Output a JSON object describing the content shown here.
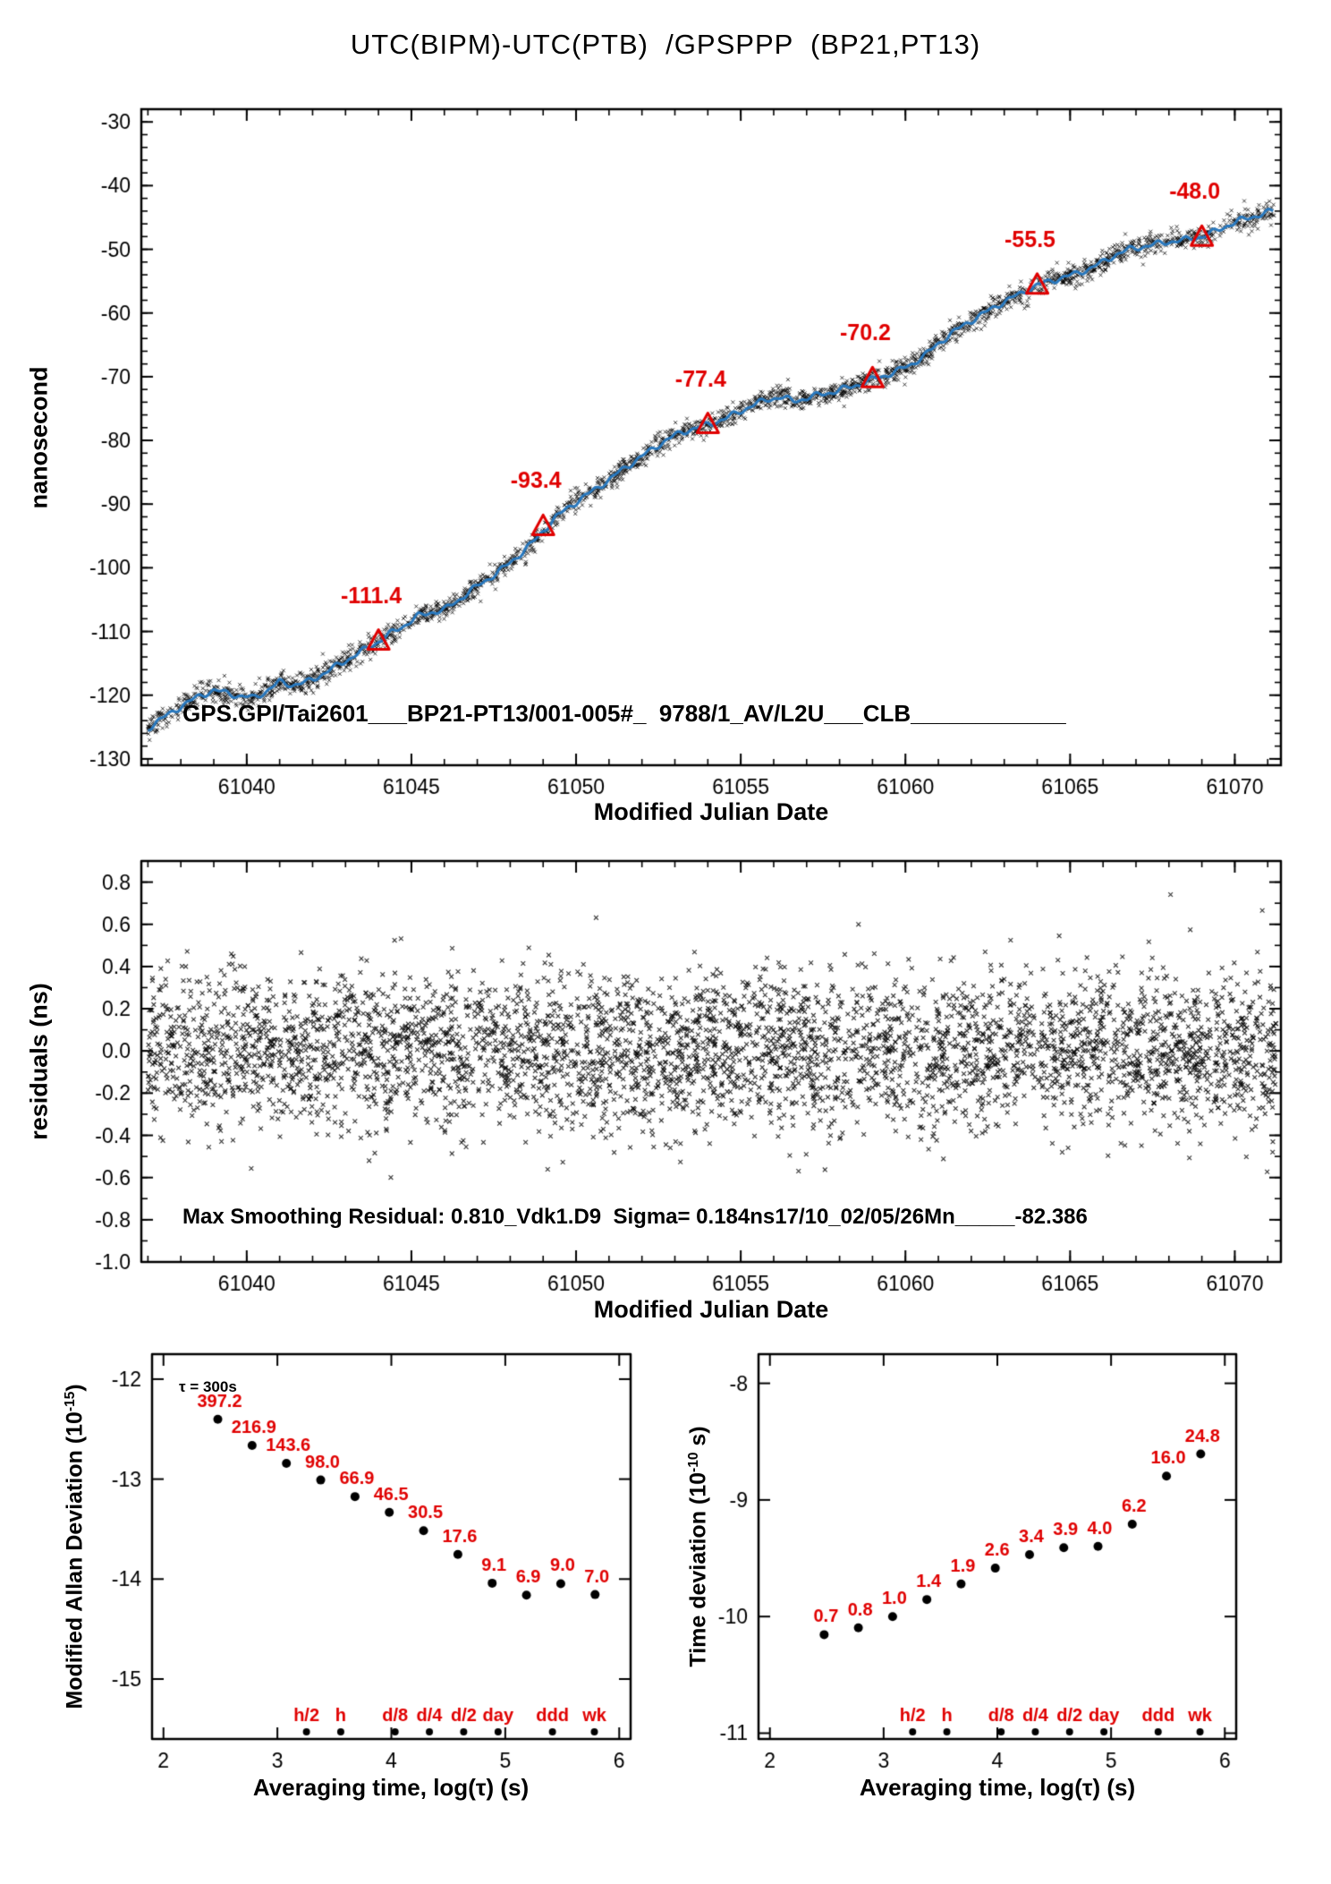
{
  "page": {
    "title": "UTC(BIPM)-UTC(PTB)  /GPSPPP  (BP21,PT13)"
  },
  "colors": {
    "red": "#e00000",
    "blue": "#2878be",
    "black": "#000000"
  },
  "chart_data": [
    {
      "id": "phase",
      "type": "line",
      "xlabel": "Modified Julian Date",
      "ylabel": "nanosecond",
      "xlim": [
        61036.8,
        61071.4
      ],
      "ylim": [
        -131,
        -28
      ],
      "xticks": [
        61040,
        61045,
        61050,
        61055,
        61060,
        61065,
        61070
      ],
      "xtick_labels": [
        "61040",
        "61045",
        "61050",
        "61055",
        "61060",
        "61065",
        "61070"
      ],
      "yticks": [
        -130,
        -120,
        -110,
        -100,
        -90,
        -80,
        -70,
        -60,
        -50,
        -40,
        -30
      ],
      "ytick_labels": [
        "-130",
        "-120",
        "-110",
        "-100",
        "-90",
        "-80",
        "-70",
        "-60",
        "-50",
        "-40",
        "-30"
      ],
      "line_color": "#2878be",
      "series": [
        {
          "name": "UTC(BIPM)-UTC(PTB) smoothed",
          "points": [
            [
              61037.0,
              -125.2
            ],
            [
              61037.4,
              -123.8
            ],
            [
              61037.8,
              -122.4
            ],
            [
              61038.2,
              -121.2
            ],
            [
              61038.6,
              -120.0
            ],
            [
              61039.0,
              -119.3
            ],
            [
              61039.4,
              -119.6
            ],
            [
              61039.8,
              -120.2
            ],
            [
              61040.2,
              -120.4
            ],
            [
              61040.6,
              -119.4
            ],
            [
              61041.0,
              -117.9
            ],
            [
              61041.4,
              -118.4
            ],
            [
              61041.8,
              -118.0
            ],
            [
              61042.2,
              -117.0
            ],
            [
              61042.6,
              -115.8
            ],
            [
              61043.0,
              -114.6
            ],
            [
              61043.4,
              -113.4
            ],
            [
              61043.8,
              -112.2
            ],
            [
              61044.0,
              -111.6
            ],
            [
              61044.4,
              -110.2
            ],
            [
              61044.8,
              -109.0
            ],
            [
              61045.2,
              -107.6
            ],
            [
              61045.6,
              -107.0
            ],
            [
              61046.0,
              -106.6
            ],
            [
              61046.4,
              -105.2
            ],
            [
              61046.8,
              -103.6
            ],
            [
              61047.2,
              -102.2
            ],
            [
              61047.6,
              -100.8
            ],
            [
              61048.0,
              -99.2
            ],
            [
              61048.4,
              -97.4
            ],
            [
              61048.8,
              -95.4
            ],
            [
              61049.0,
              -94.2
            ],
            [
              61049.4,
              -92.0
            ],
            [
              61049.8,
              -90.4
            ],
            [
              61050.2,
              -89.0
            ],
            [
              61050.6,
              -87.6
            ],
            [
              61051.0,
              -86.2
            ],
            [
              61051.4,
              -84.6
            ],
            [
              61051.8,
              -83.2
            ],
            [
              61052.2,
              -81.8
            ],
            [
              61052.6,
              -80.4
            ],
            [
              61053.0,
              -79.2
            ],
            [
              61053.4,
              -78.4
            ],
            [
              61053.8,
              -77.8
            ],
            [
              61054.2,
              -77.2
            ],
            [
              61054.6,
              -76.4
            ],
            [
              61055.0,
              -75.4
            ],
            [
              61055.4,
              -74.4
            ],
            [
              61055.8,
              -73.6
            ],
            [
              61056.2,
              -73.2
            ],
            [
              61056.6,
              -73.8
            ],
            [
              61057.0,
              -73.4
            ],
            [
              61057.4,
              -72.8
            ],
            [
              61057.8,
              -72.4
            ],
            [
              61058.2,
              -71.8
            ],
            [
              61058.6,
              -71.2
            ],
            [
              61059.0,
              -70.4
            ],
            [
              61059.4,
              -69.8
            ],
            [
              61059.8,
              -69.0
            ],
            [
              61060.2,
              -68.0
            ],
            [
              61060.6,
              -66.6
            ],
            [
              61061.0,
              -64.8
            ],
            [
              61061.4,
              -63.2
            ],
            [
              61061.8,
              -61.8
            ],
            [
              61062.2,
              -60.6
            ],
            [
              61062.6,
              -59.4
            ],
            [
              61063.0,
              -58.2
            ],
            [
              61063.4,
              -57.2
            ],
            [
              61063.8,
              -56.2
            ],
            [
              61064.0,
              -55.6
            ],
            [
              61064.4,
              -55.0
            ],
            [
              61064.8,
              -54.4
            ],
            [
              61065.2,
              -53.8
            ],
            [
              61065.6,
              -53.0
            ],
            [
              61066.0,
              -52.0
            ],
            [
              61066.4,
              -50.8
            ],
            [
              61066.8,
              -50.0
            ],
            [
              61067.2,
              -49.6
            ],
            [
              61067.6,
              -49.2
            ],
            [
              61068.0,
              -48.8
            ],
            [
              61068.4,
              -48.6
            ],
            [
              61068.8,
              -48.2
            ],
            [
              61069.0,
              -48.0
            ],
            [
              61069.4,
              -47.2
            ],
            [
              61069.8,
              -46.2
            ],
            [
              61070.2,
              -45.4
            ],
            [
              61070.6,
              -44.8
            ],
            [
              61071.0,
              -44.2
            ],
            [
              61071.2,
              -44.0
            ]
          ]
        }
      ],
      "markers": [
        {
          "x": 61044,
          "y": -111.4,
          "label": "-111.4"
        },
        {
          "x": 61049,
          "y": -93.4,
          "label": "-93.4"
        },
        {
          "x": 61054,
          "y": -77.4,
          "label": "-77.4"
        },
        {
          "x": 61059,
          "y": -70.2,
          "label": "-70.2"
        },
        {
          "x": 61064,
          "y": -55.5,
          "label": "-55.5"
        },
        {
          "x": 61069,
          "y": -48.0,
          "label": "-48.0"
        }
      ],
      "annotation": "GPS.GPI/Tai2601___BP21-PT13/001-005#_  9788/1_AV/L2U___CLB____________"
    },
    {
      "id": "residuals",
      "type": "scatter",
      "xlabel": "Modified Julian Date",
      "ylabel": "residuals (ns)",
      "xlim": [
        61036.8,
        61071.4
      ],
      "ylim": [
        -1.0,
        0.9
      ],
      "xticks": [
        61040,
        61045,
        61050,
        61055,
        61060,
        61065,
        61070
      ],
      "xtick_labels": [
        "61040",
        "61045",
        "61050",
        "61055",
        "61060",
        "61065",
        "61070"
      ],
      "yticks": [
        0.8,
        0.6,
        0.4,
        0.2,
        0.0,
        -0.2,
        -0.4,
        -0.6,
        -0.8,
        -1.0
      ],
      "ytick_labels": [
        "0.8",
        "0.6",
        "0.4",
        "0.2",
        "0.0",
        "-0.2",
        "-0.4",
        "-0.6",
        "-0.8",
        "-1.0"
      ],
      "sigma_ns": 0.184,
      "max_residual_ns": 0.81,
      "annotation": "Max Smoothing Residual: 0.810_Vdk1.D9  Sigma= 0.184ns17/10_02/05/26Mn_____-82.386"
    },
    {
      "id": "mdev",
      "type": "scatter",
      "xlabel": "Averaging time, log(τ) (s)",
      "ylabel_main": "Modified Allan Deviation (10",
      "ylabel_exp": "-15",
      "ylabel_end": ")",
      "tau_note": "τ = 300s",
      "xlim": [
        1.9,
        6.1
      ],
      "ylim": [
        -15.6,
        -11.75
      ],
      "xticks": [
        2,
        3,
        4,
        5,
        6
      ],
      "xtick_labels": [
        "2",
        "3",
        "4",
        "5",
        "6"
      ],
      "yticks": [
        -12,
        -13,
        -14,
        -15
      ],
      "ytick_labels": [
        "-12",
        "-13",
        "-14",
        "-15"
      ],
      "points": [
        {
          "x": 2.477,
          "y": -12.401,
          "label": "397.2"
        },
        {
          "x": 2.778,
          "y": -12.664,
          "label": "216.9"
        },
        {
          "x": 3.079,
          "y": -12.843,
          "label": "143.6"
        },
        {
          "x": 3.38,
          "y": -13.009,
          "label": "98.0"
        },
        {
          "x": 3.681,
          "y": -13.175,
          "label": "66.9"
        },
        {
          "x": 3.982,
          "y": -13.333,
          "label": "46.5"
        },
        {
          "x": 4.283,
          "y": -13.516,
          "label": "30.5"
        },
        {
          "x": 4.584,
          "y": -13.754,
          "label": "17.6"
        },
        {
          "x": 4.885,
          "y": -14.041,
          "label": "9.1"
        },
        {
          "x": 5.186,
          "y": -14.161,
          "label": "6.9"
        },
        {
          "x": 5.487,
          "y": -14.046,
          "label": "9.0"
        },
        {
          "x": 5.788,
          "y": -14.155,
          "label": "7.0"
        }
      ],
      "time_ticks": [
        {
          "x": 3.255,
          "label": "h/2"
        },
        {
          "x": 3.556,
          "label": "h"
        },
        {
          "x": 4.033,
          "label": "d/8"
        },
        {
          "x": 4.334,
          "label": "d/4"
        },
        {
          "x": 4.635,
          "label": "d/2"
        },
        {
          "x": 4.937,
          "label": "day"
        },
        {
          "x": 5.414,
          "label": "ddd"
        },
        {
          "x": 5.782,
          "label": "wk"
        }
      ]
    },
    {
      "id": "tdev",
      "type": "scatter",
      "xlabel": "Averaging time, log(τ) (s)",
      "ylabel_main": "Time deviation (10",
      "ylabel_exp": "-10",
      "ylabel_end": " s)",
      "xlim": [
        1.9,
        6.1
      ],
      "ylim": [
        -11.05,
        -7.75
      ],
      "xticks": [
        2,
        3,
        4,
        5,
        6
      ],
      "xtick_labels": [
        "2",
        "3",
        "4",
        "5",
        "6"
      ],
      "yticks": [
        -8,
        -9,
        -10,
        -11
      ],
      "ytick_labels": [
        "-8",
        "-9",
        "-10",
        "-11"
      ],
      "points": [
        {
          "x": 2.477,
          "y": -10.155,
          "label": "0.7"
        },
        {
          "x": 2.778,
          "y": -10.097,
          "label": "0.8"
        },
        {
          "x": 3.079,
          "y": -10.0,
          "label": "1.0"
        },
        {
          "x": 3.38,
          "y": -9.854,
          "label": "1.4"
        },
        {
          "x": 3.681,
          "y": -9.721,
          "label": "1.9"
        },
        {
          "x": 3.982,
          "y": -9.585,
          "label": "2.6"
        },
        {
          "x": 4.283,
          "y": -9.469,
          "label": "3.4"
        },
        {
          "x": 4.584,
          "y": -9.409,
          "label": "3.9"
        },
        {
          "x": 4.885,
          "y": -9.398,
          "label": "4.0"
        },
        {
          "x": 5.186,
          "y": -9.208,
          "label": "6.2"
        },
        {
          "x": 5.487,
          "y": -8.796,
          "label": "16.0"
        },
        {
          "x": 5.788,
          "y": -8.606,
          "label": "24.8"
        }
      ],
      "time_ticks": [
        {
          "x": 3.255,
          "label": "h/2"
        },
        {
          "x": 3.556,
          "label": "h"
        },
        {
          "x": 4.033,
          "label": "d/8"
        },
        {
          "x": 4.334,
          "label": "d/4"
        },
        {
          "x": 4.635,
          "label": "d/2"
        },
        {
          "x": 4.937,
          "label": "day"
        },
        {
          "x": 5.414,
          "label": "ddd"
        },
        {
          "x": 5.782,
          "label": "wk"
        }
      ]
    }
  ]
}
